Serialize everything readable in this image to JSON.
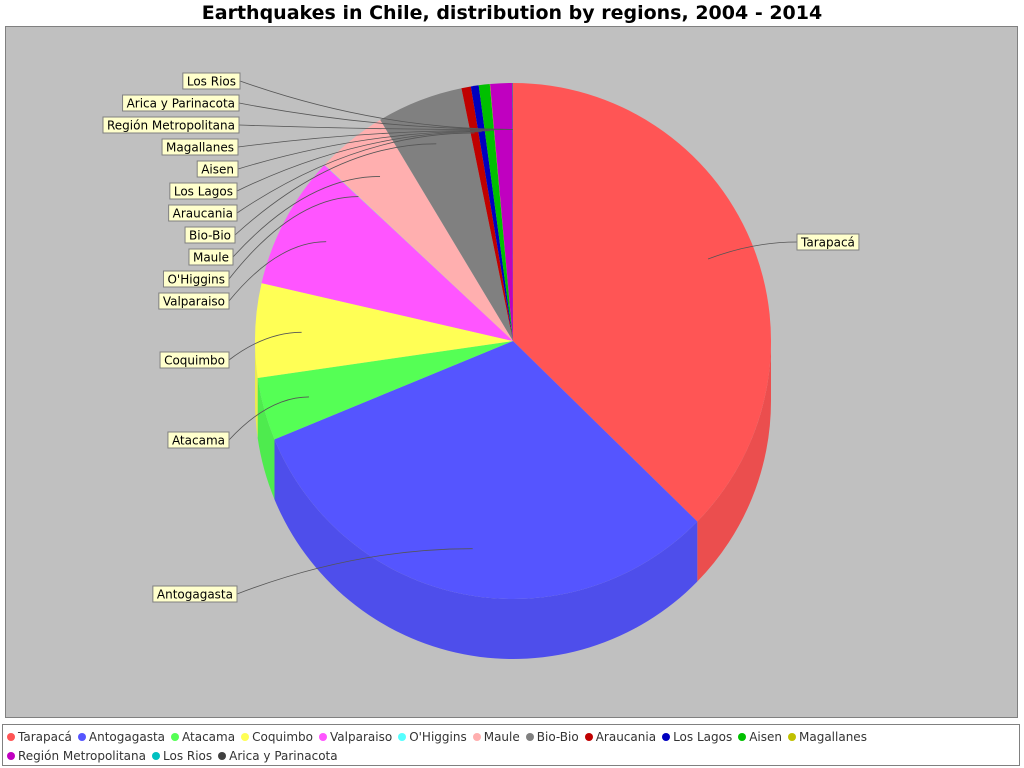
{
  "title": "Earthquakes in Chile, distribution by regions, 2004 - 2014",
  "chart_data": {
    "type": "pie",
    "title": "Earthquakes in Chile, distribution by regions, 2004 - 2014",
    "legend_placement": "bottom",
    "slices": [
      {
        "name": "Tarapacá",
        "value": 38.0,
        "color": "#ff5555"
      },
      {
        "name": "Antogagasta",
        "value": 32.0,
        "color": "#5555ff"
      },
      {
        "name": "Atacama",
        "value": 4.0,
        "color": "#55ff55"
      },
      {
        "name": "Coquimbo",
        "value": 6.0,
        "color": "#ffff55"
      },
      {
        "name": "Valparaiso",
        "value": 8.5,
        "color": "#ff55ff"
      },
      {
        "name": "O'Higgins",
        "value": 0.02,
        "color": "#55ffff"
      },
      {
        "name": "Maule",
        "value": 4.5,
        "color": "#ffafaf"
      },
      {
        "name": "Bio-Bio",
        "value": 5.5,
        "color": "#808080"
      },
      {
        "name": "Araucania",
        "value": 0.6,
        "color": "#c00000"
      },
      {
        "name": "Los Lagos",
        "value": 0.5,
        "color": "#0000c0"
      },
      {
        "name": "Aisen",
        "value": 0.7,
        "color": "#00c000"
      },
      {
        "name": "Magallanes",
        "value": 0.02,
        "color": "#c0c000"
      },
      {
        "name": "Región Metropolitana",
        "value": 1.4,
        "color": "#c000c0"
      },
      {
        "name": "Los Rios",
        "value": 0.02,
        "color": "#00c0c0"
      },
      {
        "name": "Arica y Parinacota",
        "value": 0.02,
        "color": "#404040"
      }
    ]
  }
}
